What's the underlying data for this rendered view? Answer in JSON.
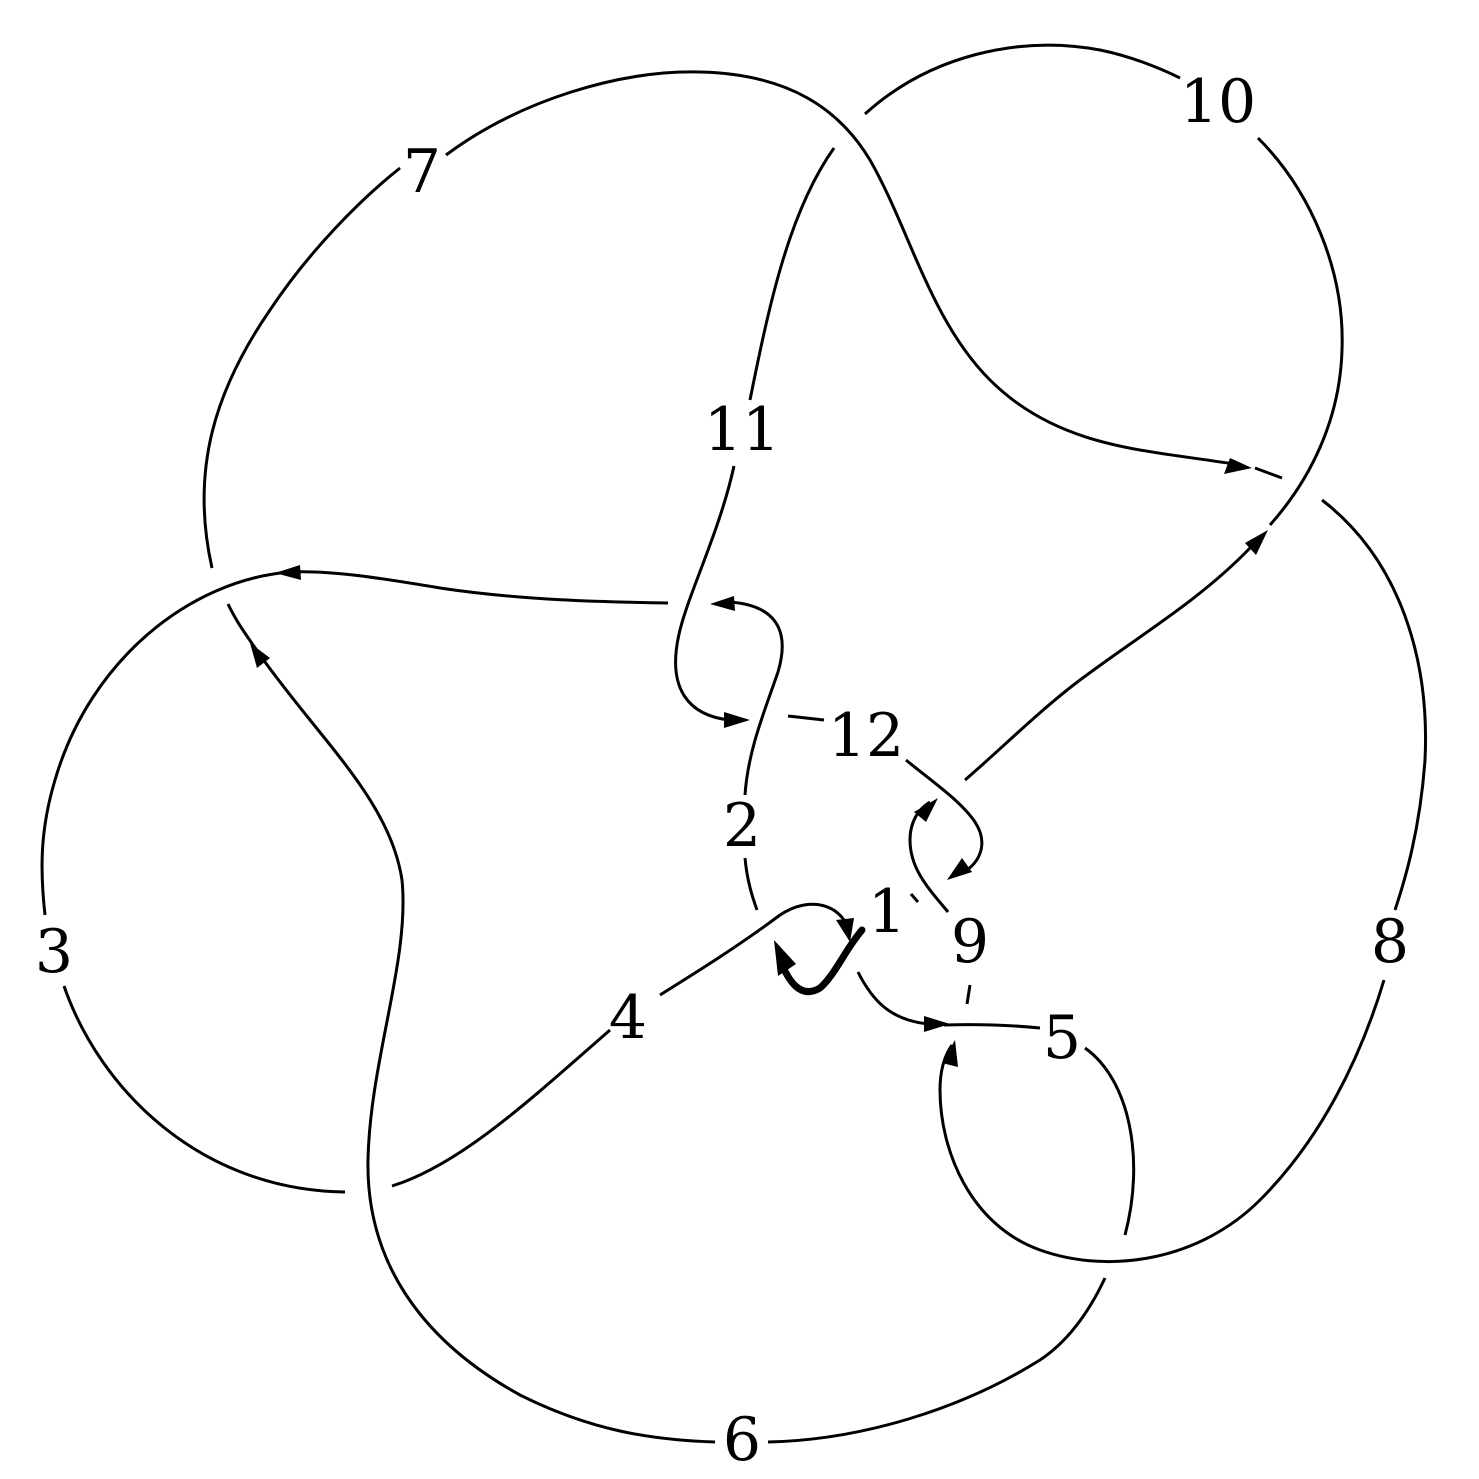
{
  "diagram": {
    "labels": {
      "l1": "1",
      "l2": "2",
      "l3": "3",
      "l4": "4",
      "l5": "5",
      "l6": "6",
      "l7": "7",
      "l8": "8",
      "l9": "9",
      "l10": "10",
      "l11": "11",
      "l12": "12"
    },
    "colors": {
      "stroke": "#000000",
      "background": "#ffffff"
    }
  }
}
